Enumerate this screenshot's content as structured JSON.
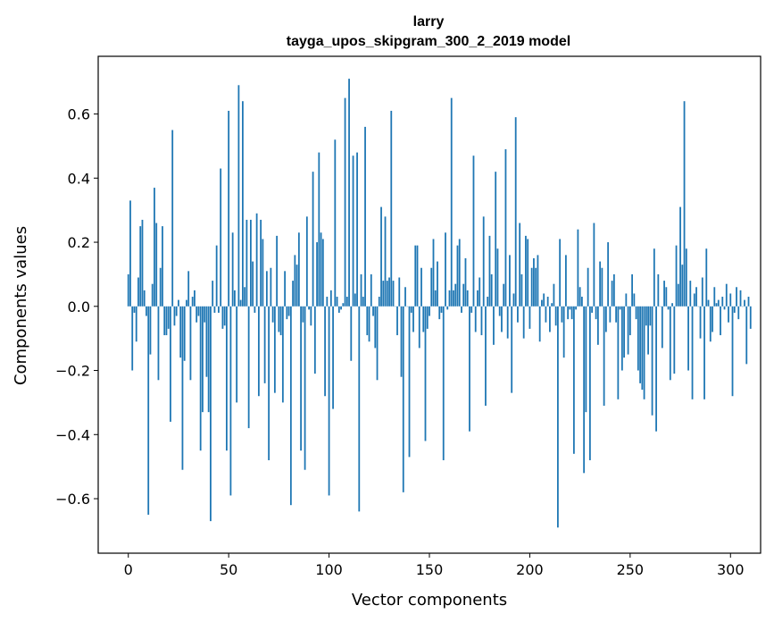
{
  "chart_data": {
    "type": "bar",
    "title_line1": "larry",
    "title_line2": "tayga_upos_skipgram_300_2_2019 model",
    "xlabel": "Vector components",
    "ylabel": "Components values",
    "xlim": [
      -15,
      315
    ],
    "ylim": [
      -0.77,
      0.78
    ],
    "xticks": [
      0,
      50,
      100,
      150,
      200,
      250,
      300
    ],
    "yticks": [
      -0.6,
      -0.4,
      -0.2,
      0.0,
      0.2,
      0.4,
      0.6
    ],
    "ytick_labels": [
      "−0.6",
      "−0.4",
      "−0.2",
      "0.0",
      "0.2",
      "0.4",
      "0.6"
    ],
    "bar_color": "#1f77b4",
    "values": [
      0.1,
      0.33,
      -0.2,
      -0.02,
      -0.11,
      0.09,
      0.25,
      0.27,
      0.05,
      -0.03,
      -0.65,
      -0.15,
      0.07,
      0.37,
      0.26,
      -0.23,
      0.12,
      0.25,
      -0.09,
      -0.09,
      -0.07,
      -0.36,
      0.55,
      -0.06,
      -0.03,
      0.02,
      -0.16,
      -0.51,
      -0.17,
      0.02,
      0.11,
      -0.23,
      0.03,
      0.05,
      -0.05,
      -0.03,
      -0.45,
      -0.33,
      -0.05,
      -0.22,
      -0.33,
      -0.67,
      0.08,
      -0.02,
      0.19,
      -0.02,
      0.43,
      -0.07,
      -0.06,
      -0.45,
      0.61,
      -0.59,
      0.23,
      0.05,
      -0.3,
      0.69,
      0.02,
      0.64,
      0.06,
      0.27,
      -0.38,
      0.27,
      0.14,
      -0.02,
      0.29,
      -0.28,
      0.27,
      0.21,
      -0.24,
      0.11,
      -0.48,
      0.12,
      -0.05,
      -0.27,
      0.22,
      -0.08,
      -0.09,
      -0.3,
      0.11,
      -0.04,
      -0.03,
      -0.62,
      0.08,
      0.16,
      0.13,
      0.23,
      -0.45,
      -0.05,
      -0.51,
      0.28,
      -0.01,
      -0.06,
      0.42,
      -0.21,
      0.2,
      0.48,
      0.23,
      0.21,
      -0.28,
      0.03,
      -0.59,
      0.05,
      -0.32,
      0.52,
      0.03,
      -0.02,
      -0.01,
      0.01,
      0.65,
      0.03,
      0.71,
      -0.17,
      0.47,
      0.04,
      0.48,
      -0.64,
      0.1,
      0.03,
      0.56,
      -0.09,
      -0.11,
      0.1,
      -0.03,
      -0.13,
      -0.23,
      0.03,
      0.31,
      0.08,
      0.28,
      0.08,
      0.09,
      0.61,
      0.08,
      0.0,
      -0.09,
      0.09,
      -0.22,
      -0.58,
      0.06,
      0.0,
      -0.47,
      -0.02,
      -0.08,
      0.19,
      0.19,
      -0.13,
      0.12,
      -0.08,
      -0.42,
      -0.07,
      -0.03,
      0.12,
      0.21,
      0.05,
      0.14,
      -0.04,
      -0.02,
      -0.48,
      0.23,
      -0.01,
      0.05,
      0.65,
      0.05,
      0.07,
      0.19,
      0.21,
      -0.02,
      0.07,
      0.15,
      0.05,
      -0.39,
      -0.02,
      0.47,
      -0.08,
      0.05,
      0.09,
      -0.09,
      0.28,
      -0.31,
      0.03,
      0.22,
      0.1,
      -0.12,
      0.42,
      0.18,
      -0.03,
      -0.08,
      0.07,
      0.49,
      -0.1,
      0.16,
      -0.27,
      0.04,
      0.59,
      -0.05,
      0.26,
      0.1,
      -0.1,
      0.22,
      0.21,
      -0.07,
      0.12,
      0.15,
      0.12,
      0.16,
      -0.11,
      0.02,
      0.04,
      -0.05,
      0.03,
      -0.08,
      0.01,
      0.07,
      -0.06,
      -0.69,
      0.21,
      -0.05,
      -0.16,
      0.16,
      -0.04,
      -0.01,
      -0.04,
      -0.46,
      -0.01,
      0.24,
      0.06,
      0.03,
      -0.52,
      -0.33,
      0.12,
      -0.48,
      -0.02,
      0.26,
      -0.04,
      -0.12,
      0.14,
      0.12,
      -0.31,
      -0.08,
      0.2,
      -0.05,
      0.08,
      0.1,
      -0.05,
      -0.29,
      -0.01,
      -0.2,
      -0.16,
      0.04,
      -0.15,
      -0.09,
      0.1,
      0.04,
      -0.04,
      -0.2,
      -0.24,
      -0.26,
      -0.29,
      -0.06,
      -0.15,
      -0.06,
      -0.34,
      0.18,
      -0.39,
      0.1,
      0.0,
      -0.13,
      0.08,
      0.06,
      -0.01,
      -0.23,
      0.01,
      -0.21,
      0.19,
      0.07,
      0.31,
      0.13,
      0.64,
      0.18,
      -0.2,
      0.08,
      -0.29,
      0.04,
      0.06,
      0.0,
      -0.1,
      0.09,
      -0.29,
      0.18,
      0.02,
      -0.11,
      -0.08,
      0.06,
      0.01,
      0.02,
      -0.09,
      0.03,
      -0.01,
      0.07,
      -0.05,
      0.04,
      -0.28,
      -0.02,
      0.06,
      -0.04,
      0.05,
      0.0,
      0.02,
      -0.18,
      0.03,
      -0.07
    ]
  }
}
